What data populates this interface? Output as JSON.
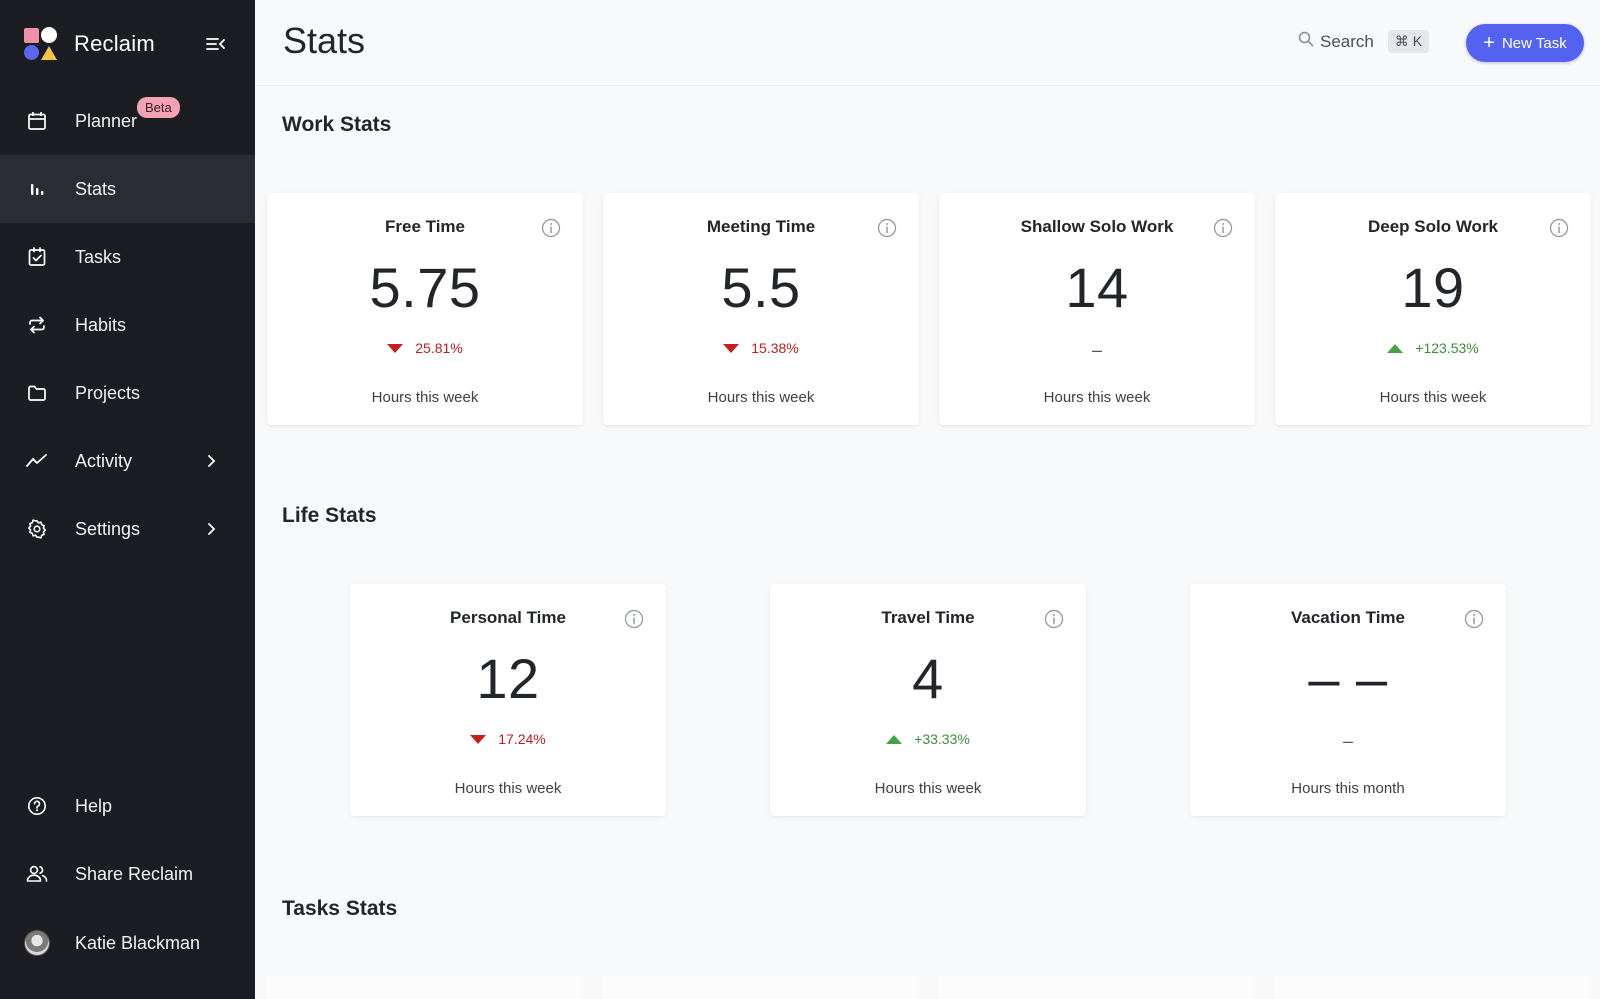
{
  "sidebar": {
    "brand": "Reclaim",
    "items": [
      {
        "label": "Planner",
        "icon": "calendar-icon",
        "badge": "Beta"
      },
      {
        "label": "Stats",
        "icon": "bar-chart-icon",
        "active": true
      },
      {
        "label": "Tasks",
        "icon": "checkbox-icon"
      },
      {
        "label": "Habits",
        "icon": "repeat-icon"
      },
      {
        "label": "Projects",
        "icon": "folder-icon"
      },
      {
        "label": "Activity",
        "icon": "trend-icon",
        "chevron": true
      },
      {
        "label": "Settings",
        "icon": "gear-icon",
        "chevron": true
      }
    ],
    "bottom": [
      {
        "label": "Help",
        "icon": "help-icon"
      },
      {
        "label": "Share Reclaim",
        "icon": "users-icon"
      }
    ],
    "user": {
      "name": "Katie Blackman"
    }
  },
  "header": {
    "title": "Stats",
    "search_label": "Search",
    "shortcut": "⌘ K",
    "new_task_label": "New Task"
  },
  "sections": {
    "work": {
      "title": "Work Stats",
      "cards": [
        {
          "title": "Free Time",
          "value": "5.75",
          "change": "25.81%",
          "direction": "down",
          "footer": "Hours this week"
        },
        {
          "title": "Meeting Time",
          "value": "5.5",
          "change": "15.38%",
          "direction": "down",
          "footer": "Hours this week"
        },
        {
          "title": "Shallow Solo Work",
          "value": "14",
          "change": "–",
          "direction": "none",
          "footer": "Hours this week"
        },
        {
          "title": "Deep Solo Work",
          "value": "19",
          "change": "+123.53%",
          "direction": "up",
          "footer": "Hours this week"
        }
      ]
    },
    "life": {
      "title": "Life Stats",
      "cards": [
        {
          "title": "Personal Time",
          "value": "12",
          "change": "17.24%",
          "direction": "down",
          "footer": "Hours this week"
        },
        {
          "title": "Travel Time",
          "value": "4",
          "change": "+33.33%",
          "direction": "up",
          "footer": "Hours this week"
        },
        {
          "title": "Vacation Time",
          "value": "– –",
          "change": "–",
          "direction": "none",
          "footer": "Hours this month"
        }
      ]
    },
    "tasks": {
      "title": "Tasks Stats"
    }
  },
  "colors": {
    "accent": "#5462f0",
    "down": "#c32020",
    "up": "#4aa04a",
    "sidebar": "#1b1d22"
  }
}
